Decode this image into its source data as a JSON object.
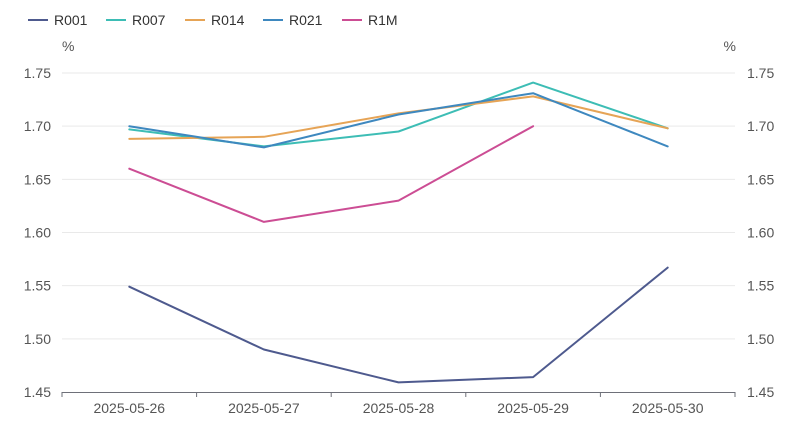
{
  "chart_data": {
    "type": "line",
    "categories": [
      "2025-05-26",
      "2025-05-27",
      "2025-05-28",
      "2025-05-29",
      "2025-05-30"
    ],
    "series": [
      {
        "name": "R001",
        "color": "#4E5A8E",
        "values": [
          1.549,
          1.49,
          1.459,
          1.464,
          1.567
        ]
      },
      {
        "name": "R007",
        "color": "#3DBDB5",
        "values": [
          1.697,
          1.681,
          1.695,
          1.741,
          1.698
        ]
      },
      {
        "name": "R014",
        "color": "#E6A456",
        "values": [
          1.688,
          1.69,
          1.712,
          1.728,
          1.698
        ]
      },
      {
        "name": "R021",
        "color": "#3E88BF",
        "values": [
          1.7,
          1.68,
          1.711,
          1.731,
          1.681
        ]
      },
      {
        "name": "R1M",
        "color": "#CC4D94",
        "values": [
          1.66,
          1.61,
          1.63,
          1.7,
          null
        ]
      }
    ],
    "ylabel_left": "%",
    "ylabel_right": "%",
    "ylim": [
      1.45,
      1.75
    ],
    "yticks": [
      "1.45",
      "1.50",
      "1.55",
      "1.60",
      "1.65",
      "1.70",
      "1.75"
    ],
    "grid": true,
    "legend": "top-left"
  }
}
